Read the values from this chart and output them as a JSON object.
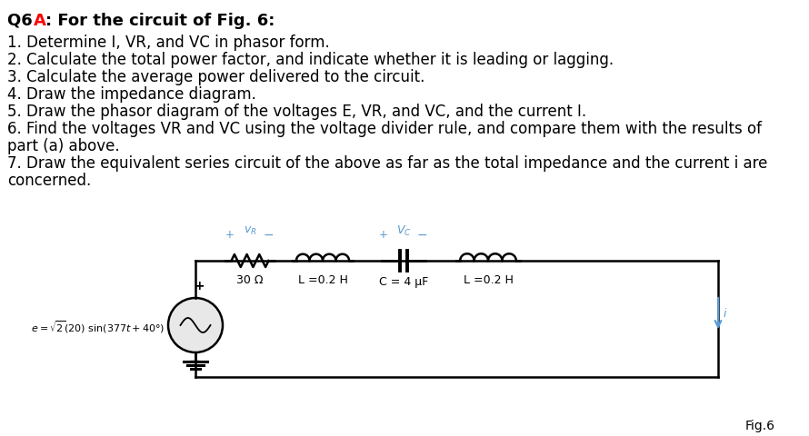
{
  "title_q6": "Q6 ",
  "title_A": "A",
  "title_rest": ": For the circuit of Fig. 6:",
  "items": [
    "1. Determine I, VR, and VC in phasor form.",
    "2. Calculate the total power factor, and indicate whether it is leading or lagging.",
    "3. Calculate the average power delivered to the circuit.",
    "4. Draw the impedance diagram.",
    "5. Draw the phasor diagram of the voltages E, VR, and VC, and the current I.",
    "6. Find the voltages VR and VC using the voltage divider rule, and compare them with the results of",
    "part (a) above.",
    "7. Draw the equivalent series circuit of the above as far as the total impedance and the current i are",
    "concerned."
  ],
  "res_label": "30 Ω",
  "ind1_label": "L =0.2 H",
  "cap_label": "C = 4 μF",
  "ind2_label": "L =0.2 H",
  "fig_label": "Fig.6",
  "text_color": "#000000",
  "blue_color": "#5B9BD5",
  "background": "#ffffff",
  "title_fontsize": 13,
  "item_fontsize": 12,
  "circuit_lw": 1.8,
  "comp_lw": 1.8
}
